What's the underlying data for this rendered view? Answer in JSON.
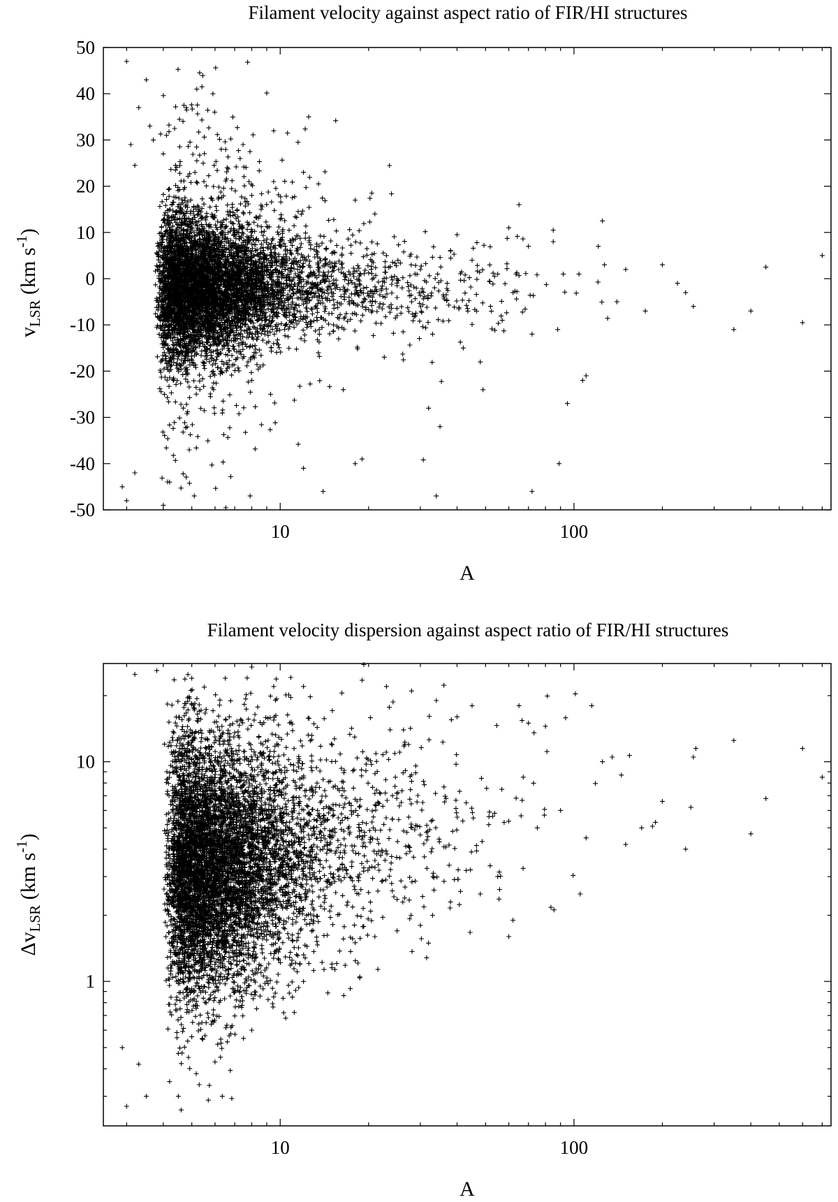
{
  "chart_data": [
    {
      "type": "scatter",
      "title": "Filament velocity against aspect ratio of FIR/HI structures",
      "xlabel": "A",
      "ylabel": {
        "base": "v",
        "sub": "LSR",
        "unit_open": " (km s",
        "sup": "-1",
        "unit_close": ")"
      },
      "x_scale": "log",
      "y_scale": "linear",
      "xlim": [
        2.5,
        750
      ],
      "ylim": [
        -50,
        50
      ],
      "x_ticks": [
        {
          "value": 10,
          "label": "10"
        },
        {
          "value": 100,
          "label": "100"
        }
      ],
      "y_ticks": [
        {
          "value": -50,
          "label": "-50"
        },
        {
          "value": -40,
          "label": "-40"
        },
        {
          "value": -30,
          "label": "-30"
        },
        {
          "value": -20,
          "label": "-20"
        },
        {
          "value": -10,
          "label": "-10"
        },
        {
          "value": 0,
          "label": "0"
        },
        {
          "value": 10,
          "label": "10"
        },
        {
          "value": 20,
          "label": "20"
        },
        {
          "value": 30,
          "label": "30"
        },
        {
          "value": 40,
          "label": "40"
        },
        {
          "value": 50,
          "label": "50"
        }
      ],
      "grid": false,
      "marker": "+",
      "color": "#000000",
      "points": [
        [
          3.0,
          47
        ],
        [
          3.5,
          43
        ],
        [
          5.2,
          41
        ],
        [
          5.9,
          40
        ],
        [
          4.7,
          37.5
        ],
        [
          4.8,
          36.5
        ],
        [
          3.3,
          37
        ],
        [
          12.5,
          35
        ],
        [
          9.5,
          32
        ],
        [
          3.6,
          33
        ],
        [
          4.1,
          31
        ],
        [
          3.7,
          30
        ],
        [
          11.5,
          29.5
        ],
        [
          6.3,
          28
        ],
        [
          3.1,
          29
        ],
        [
          4.0,
          27
        ],
        [
          7.3,
          26
        ],
        [
          5.2,
          25.5
        ],
        [
          4.4,
          24.5
        ],
        [
          3.2,
          24.5
        ],
        [
          6.6,
          24
        ],
        [
          12.0,
          23
        ],
        [
          9.5,
          21
        ],
        [
          13.5,
          20.5
        ],
        [
          20.5,
          18.5
        ],
        [
          11.0,
          17.5
        ],
        [
          18.0,
          17
        ],
        [
          8.0,
          18
        ],
        [
          65.0,
          16
        ],
        [
          21.0,
          14
        ],
        [
          125,
          12.5
        ],
        [
          60.0,
          11
        ],
        [
          85.0,
          10.5
        ],
        [
          85.0,
          8
        ],
        [
          40.0,
          9.5
        ],
        [
          70.0,
          7
        ],
        [
          121,
          7
        ],
        [
          127,
          3
        ],
        [
          150,
          2
        ],
        [
          200,
          3
        ],
        [
          450,
          2.5
        ],
        [
          700,
          5
        ],
        [
          92.0,
          1
        ],
        [
          104,
          1
        ],
        [
          225,
          -1
        ],
        [
          240,
          -3
        ],
        [
          255,
          -6
        ],
        [
          140,
          -5
        ],
        [
          175,
          -7
        ],
        [
          400,
          -7
        ],
        [
          350,
          -11
        ],
        [
          600,
          -9.5
        ],
        [
          88.0,
          -11
        ],
        [
          72.0,
          -12
        ],
        [
          48.0,
          -18
        ],
        [
          49.0,
          -24
        ],
        [
          110,
          -21
        ],
        [
          107,
          -22
        ],
        [
          95.0,
          -27
        ],
        [
          32.0,
          -28
        ],
        [
          35.0,
          -32
        ],
        [
          19.0,
          -39
        ],
        [
          18.0,
          -40
        ],
        [
          12.0,
          -41
        ],
        [
          14.0,
          -46
        ],
        [
          34.0,
          -47
        ],
        [
          72.0,
          -46
        ],
        [
          89.0,
          -40
        ],
        [
          3.0,
          -48
        ],
        [
          4.0,
          -49
        ],
        [
          2.9,
          -45
        ],
        [
          5.1,
          -47
        ],
        [
          7.9,
          -47
        ],
        [
          3.2,
          -42
        ],
        [
          4.2,
          -44
        ],
        [
          25.0,
          -8
        ],
        [
          28.0,
          -5
        ],
        [
          30.0,
          2
        ],
        [
          26.0,
          -2
        ],
        [
          23.0,
          5
        ],
        [
          33.0,
          -12
        ],
        [
          37.0,
          -1
        ],
        [
          45.0,
          4
        ],
        [
          52.0,
          -6
        ],
        [
          55.0,
          1
        ],
        [
          57.0,
          -9
        ],
        [
          62.0,
          -3
        ],
        [
          42.0,
          -15
        ],
        [
          38.0,
          6
        ]
      ],
      "cloud": {
        "count": 6200,
        "center_x": 4.3,
        "center_y": -2.0,
        "scale_x_log10": 0.2,
        "scale_y": 8
      }
    },
    {
      "type": "scatter",
      "title": "Filament velocity dispersion against aspect ratio of FIR/HI structures",
      "xlabel": "A",
      "ylabel": {
        "base": "Δv",
        "sub": "LSR",
        "unit_open": " (km s",
        "sup": "-1",
        "unit_close": ")"
      },
      "x_scale": "log",
      "y_scale": "log",
      "xlim": [
        2.5,
        750
      ],
      "ylim": [
        0.22,
        28
      ],
      "x_ticks": [
        {
          "value": 10,
          "label": "10"
        },
        {
          "value": 100,
          "label": "100"
        }
      ],
      "y_ticks": [
        {
          "value": 1,
          "label": "1"
        },
        {
          "value": 10,
          "label": "10"
        }
      ],
      "grid": false,
      "marker": "+",
      "color": "#000000",
      "points": [
        [
          3.2,
          25
        ],
        [
          3.8,
          26
        ],
        [
          5.0,
          24
        ],
        [
          6.5,
          24
        ],
        [
          8.0,
          27
        ],
        [
          9.5,
          22
        ],
        [
          12.0,
          22
        ],
        [
          19.0,
          23.5
        ],
        [
          23.0,
          22
        ],
        [
          28.0,
          21
        ],
        [
          34.0,
          19
        ],
        [
          40.0,
          16
        ],
        [
          45.0,
          18
        ],
        [
          65.0,
          18
        ],
        [
          70.0,
          15
        ],
        [
          80.0,
          14.5
        ],
        [
          115,
          18
        ],
        [
          125,
          10
        ],
        [
          135,
          10.5
        ],
        [
          260,
          11.5
        ],
        [
          255,
          10.5
        ],
        [
          350,
          12.5
        ],
        [
          600,
          11.5
        ],
        [
          700,
          8.5
        ],
        [
          450,
          6.8
        ],
        [
          400,
          4.7
        ],
        [
          240,
          4
        ],
        [
          250,
          6.2
        ],
        [
          200,
          6.6
        ],
        [
          170,
          5
        ],
        [
          150,
          4.2
        ],
        [
          145,
          8.7
        ],
        [
          110,
          4.5
        ],
        [
          105,
          2.5
        ],
        [
          90.0,
          6
        ],
        [
          75.0,
          5
        ],
        [
          62.0,
          1.9
        ],
        [
          60.0,
          1.6
        ],
        [
          55.0,
          3
        ],
        [
          48.0,
          2.5
        ],
        [
          43.0,
          3.2
        ],
        [
          38.0,
          2.3
        ],
        [
          33.0,
          2.0
        ],
        [
          30.0,
          1.8
        ],
        [
          25.0,
          1.7
        ],
        [
          21.0,
          1.6
        ],
        [
          18.0,
          1.5
        ],
        [
          15.0,
          1.2
        ],
        [
          12.0,
          1.0
        ],
        [
          9.5,
          0.85
        ],
        [
          8.0,
          0.6
        ],
        [
          7.5,
          0.55
        ],
        [
          6.0,
          0.43
        ],
        [
          5.0,
          0.56
        ],
        [
          4.5,
          0.47
        ],
        [
          4.2,
          0.35
        ],
        [
          3.5,
          0.3
        ],
        [
          4.6,
          0.26
        ],
        [
          3.0,
          0.27
        ],
        [
          4.5,
          0.3
        ],
        [
          3.3,
          0.42
        ],
        [
          2.9,
          0.5
        ]
      ],
      "cloud": {
        "count": 6800,
        "center_x": 4.6,
        "center_y_log10": 0.52,
        "scale_x_log10": 0.2,
        "scale_y_log10": 0.3
      }
    }
  ]
}
